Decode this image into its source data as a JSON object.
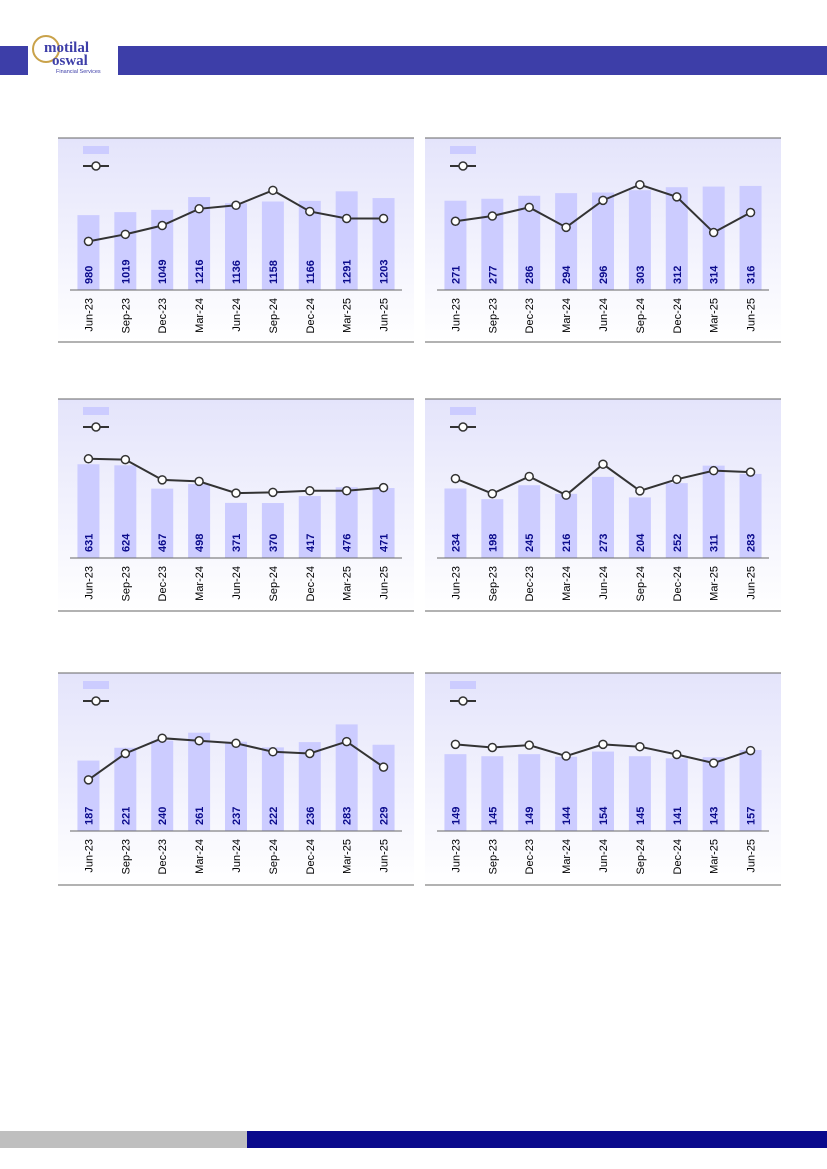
{
  "brand": {
    "name_line1": "motilal",
    "name_line2": "oswal",
    "tagline": "Financial Services",
    "primary_color": "#3d3ea8",
    "gold_color": "#c9a24a",
    "footer_color": "#0a0a8c"
  },
  "chart_data": [
    {
      "type": "bar",
      "categories": [
        "Jun-23",
        "Sep-23",
        "Dec-23",
        "Mar-24",
        "Jun-24",
        "Sep-24",
        "Dec-24",
        "Mar-25",
        "Jun-25"
      ],
      "series": [
        {
          "kind": "bar",
          "values": [
            980,
            1019,
            1049,
            1216,
            1136,
            1158,
            1166,
            1291,
            1203
          ]
        },
        {
          "kind": "line",
          "values": [
            0.28,
            0.36,
            0.46,
            0.65,
            0.69,
            0.86,
            0.62,
            0.54,
            0.54
          ]
        }
      ],
      "line_axis": "unlabeled",
      "bar_color": "#ccccff",
      "line_color": "#333333"
    },
    {
      "type": "bar",
      "categories": [
        "Jun-23",
        "Sep-23",
        "Dec-23",
        "Mar-24",
        "Jun-24",
        "Sep-24",
        "Dec-24",
        "Mar-25",
        "Jun-25"
      ],
      "series": [
        {
          "kind": "bar",
          "values": [
            271,
            277,
            286,
            294,
            296,
            303,
            312,
            314,
            316
          ]
        },
        {
          "kind": "line",
          "values": [
            0.48,
            0.54,
            0.64,
            0.41,
            0.72,
            0.9,
            0.76,
            0.35,
            0.58
          ]
        }
      ],
      "line_axis": "unlabeled",
      "bar_color": "#ccccff",
      "line_color": "#333333"
    },
    {
      "type": "bar",
      "categories": [
        "Jun-23",
        "Sep-23",
        "Dec-23",
        "Mar-24",
        "Jun-24",
        "Sep-24",
        "Dec-24",
        "Mar-25",
        "Jun-25"
      ],
      "series": [
        {
          "kind": "bar",
          "values": [
            631,
            624,
            467,
            498,
            371,
            370,
            417,
            476,
            471
          ]
        },
        {
          "kind": "line",
          "values": [
            0.9,
            0.89,
            0.63,
            0.61,
            0.46,
            0.47,
            0.49,
            0.49,
            0.53
          ]
        }
      ],
      "line_axis": "unlabeled",
      "bar_color": "#ccccff",
      "line_color": "#333333"
    },
    {
      "type": "bar",
      "categories": [
        "Jun-23",
        "Sep-23",
        "Dec-23",
        "Mar-24",
        "Jun-24",
        "Sep-24",
        "Dec-24",
        "Mar-25",
        "Jun-25"
      ],
      "series": [
        {
          "kind": "bar",
          "values": [
            234,
            198,
            245,
            216,
            273,
            204,
            252,
            311,
            283
          ]
        },
        {
          "kind": "line",
          "values": [
            0.7,
            0.49,
            0.73,
            0.47,
            0.9,
            0.53,
            0.69,
            0.81,
            0.79
          ]
        }
      ],
      "line_axis": "unlabeled",
      "bar_color": "#ccccff",
      "line_color": "#333333"
    },
    {
      "type": "bar",
      "categories": [
        "Jun-23",
        "Sep-23",
        "Dec-23",
        "Mar-24",
        "Jun-24",
        "Sep-24",
        "Dec-24",
        "Mar-25",
        "Jun-25"
      ],
      "series": [
        {
          "kind": "bar",
          "values": [
            187,
            221,
            240,
            261,
            237,
            222,
            236,
            283,
            229
          ]
        },
        {
          "kind": "line",
          "values": [
            0.39,
            0.7,
            0.88,
            0.85,
            0.82,
            0.72,
            0.7,
            0.84,
            0.54
          ]
        }
      ],
      "line_axis": "unlabeled",
      "bar_color": "#ccccff",
      "line_color": "#333333"
    },
    {
      "type": "bar",
      "categories": [
        "Jun-23",
        "Sep-23",
        "Dec-23",
        "Mar-24",
        "Jun-24",
        "Sep-24",
        "Dec-24",
        "Mar-25",
        "Jun-25"
      ],
      "series": [
        {
          "kind": "bar",
          "values": [
            149,
            145,
            149,
            144,
            154,
            145,
            141,
            143,
            157
          ]
        },
        {
          "kind": "line",
          "values": [
            0.88,
            0.84,
            0.87,
            0.73,
            0.88,
            0.85,
            0.75,
            0.64,
            0.8
          ]
        }
      ],
      "line_axis": "unlabeled",
      "bar_color": "#ccccff",
      "line_color": "#333333"
    }
  ]
}
